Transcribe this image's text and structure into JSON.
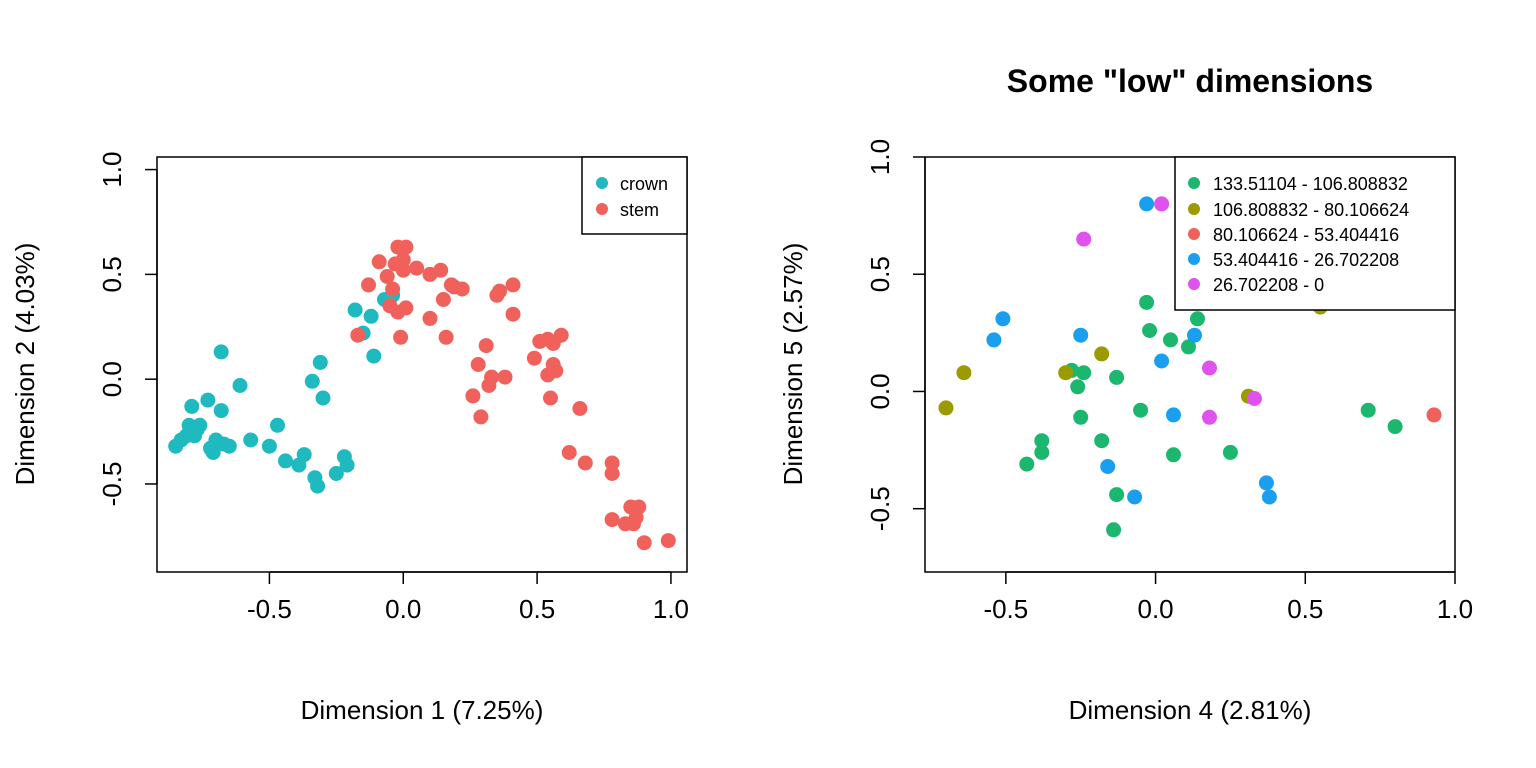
{
  "chart_data": [
    {
      "type": "scatter",
      "title": "",
      "xlabel": "Dimension 1 (7.25%)",
      "ylabel": "Dimension 2 (4.03%)",
      "xlim": [
        -0.92,
        1.06
      ],
      "ylim": [
        -0.92,
        1.06
      ],
      "xticks": [
        -0.5,
        0.0,
        0.5,
        1.0
      ],
      "yticks": [
        -0.5,
        0.0,
        0.5,
        1.0
      ],
      "xtick_labels": [
        "-0.5",
        "0.0",
        "0.5",
        "1.0"
      ],
      "ytick_labels": [
        "-0.5",
        "0.0",
        "0.5",
        "1.0"
      ],
      "grid": false,
      "legend_position": "top-right",
      "series": [
        {
          "name": "crown",
          "color": "#1fbabf",
          "points": [
            [
              -0.85,
              -0.32
            ],
            [
              -0.83,
              -0.29
            ],
            [
              -0.81,
              -0.27
            ],
            [
              -0.8,
              -0.22
            ],
            [
              -0.79,
              -0.13
            ],
            [
              -0.78,
              -0.27
            ],
            [
              -0.77,
              -0.24
            ],
            [
              -0.76,
              -0.22
            ],
            [
              -0.73,
              -0.1
            ],
            [
              -0.72,
              -0.33
            ],
            [
              -0.71,
              -0.35
            ],
            [
              -0.7,
              -0.29
            ],
            [
              -0.68,
              -0.15
            ],
            [
              -0.68,
              0.13
            ],
            [
              -0.67,
              -0.31
            ],
            [
              -0.65,
              -0.32
            ],
            [
              -0.61,
              -0.03
            ],
            [
              -0.57,
              -0.29
            ],
            [
              -0.5,
              -0.32
            ],
            [
              -0.47,
              -0.22
            ],
            [
              -0.44,
              -0.39
            ],
            [
              -0.39,
              -0.41
            ],
            [
              -0.37,
              -0.36
            ],
            [
              -0.34,
              -0.01
            ],
            [
              -0.33,
              -0.47
            ],
            [
              -0.32,
              -0.51
            ],
            [
              -0.31,
              0.08
            ],
            [
              -0.3,
              -0.09
            ],
            [
              -0.25,
              -0.45
            ],
            [
              -0.22,
              -0.37
            ],
            [
              -0.21,
              -0.41
            ],
            [
              -0.18,
              0.33
            ],
            [
              -0.15,
              0.22
            ],
            [
              -0.12,
              0.3
            ],
            [
              -0.11,
              0.11
            ],
            [
              -0.07,
              0.38
            ],
            [
              -0.04,
              0.4
            ]
          ]
        },
        {
          "name": "stem",
          "color": "#f1615c",
          "points": [
            [
              -0.17,
              0.21
            ],
            [
              -0.13,
              0.45
            ],
            [
              -0.09,
              0.56
            ],
            [
              -0.06,
              0.49
            ],
            [
              -0.05,
              0.35
            ],
            [
              -0.04,
              0.43
            ],
            [
              -0.03,
              0.55
            ],
            [
              -0.02,
              0.32
            ],
            [
              -0.02,
              0.63
            ],
            [
              -0.01,
              0.2
            ],
            [
              0.0,
              0.52
            ],
            [
              0.0,
              0.57
            ],
            [
              0.01,
              0.63
            ],
            [
              0.01,
              0.34
            ],
            [
              0.05,
              0.53
            ],
            [
              0.1,
              0.5
            ],
            [
              0.1,
              0.29
            ],
            [
              0.14,
              0.52
            ],
            [
              0.15,
              0.38
            ],
            [
              0.16,
              0.2
            ],
            [
              0.18,
              0.45
            ],
            [
              0.19,
              0.44
            ],
            [
              0.22,
              0.43
            ],
            [
              0.26,
              -0.08
            ],
            [
              0.28,
              0.07
            ],
            [
              0.29,
              -0.18
            ],
            [
              0.31,
              0.16
            ],
            [
              0.32,
              -0.03
            ],
            [
              0.33,
              0.01
            ],
            [
              0.35,
              0.4
            ],
            [
              0.36,
              0.42
            ],
            [
              0.38,
              0.01
            ],
            [
              0.41,
              0.45
            ],
            [
              0.41,
              0.31
            ],
            [
              0.49,
              0.1
            ],
            [
              0.51,
              0.18
            ],
            [
              0.54,
              0.19
            ],
            [
              0.54,
              0.02
            ],
            [
              0.55,
              -0.09
            ],
            [
              0.56,
              0.17
            ],
            [
              0.56,
              0.07
            ],
            [
              0.57,
              0.04
            ],
            [
              0.59,
              0.21
            ],
            [
              0.62,
              -0.35
            ],
            [
              0.66,
              -0.14
            ],
            [
              0.68,
              -0.4
            ],
            [
              0.78,
              -0.4
            ],
            [
              0.78,
              -0.45
            ],
            [
              0.78,
              -0.67
            ],
            [
              0.83,
              -0.69
            ],
            [
              0.85,
              -0.61
            ],
            [
              0.86,
              -0.69
            ],
            [
              0.87,
              -0.66
            ],
            [
              0.88,
              -0.61
            ],
            [
              0.9,
              -0.78
            ],
            [
              0.99,
              -0.77
            ]
          ]
        }
      ]
    },
    {
      "type": "scatter",
      "title": "Some \"low\" dimensions",
      "xlabel": "Dimension 4 (2.81%)",
      "ylabel": "Dimension 5 (2.57%)",
      "xlim": [
        -0.77,
        1.0
      ],
      "ylim": [
        -0.77,
        1.0
      ],
      "xticks": [
        -0.5,
        0.0,
        0.5,
        1.0
      ],
      "yticks": [
        -0.5,
        0.0,
        0.5,
        1.0
      ],
      "xtick_labels": [
        "-0.5",
        "0.0",
        "0.5",
        "1.0"
      ],
      "ytick_labels": [
        "-0.5",
        "0.0",
        "0.5",
        "1.0"
      ],
      "grid": false,
      "legend_position": "top-right",
      "series": [
        {
          "name": "133.51104 - 106.808832",
          "color": "#1bb76e",
          "points": [
            [
              -0.43,
              -0.31
            ],
            [
              -0.38,
              -0.21
            ],
            [
              -0.38,
              -0.26
            ],
            [
              -0.28,
              0.09
            ],
            [
              -0.26,
              0.02
            ],
            [
              -0.25,
              -0.11
            ],
            [
              -0.24,
              0.08
            ],
            [
              -0.18,
              -0.21
            ],
            [
              -0.14,
              -0.59
            ],
            [
              -0.13,
              -0.44
            ],
            [
              -0.13,
              0.06
            ],
            [
              -0.05,
              -0.08
            ],
            [
              -0.03,
              0.38
            ],
            [
              -0.02,
              0.26
            ],
            [
              0.05,
              0.22
            ],
            [
              0.06,
              -0.27
            ],
            [
              0.11,
              0.19
            ],
            [
              0.14,
              0.31
            ],
            [
              0.25,
              -0.26
            ],
            [
              0.71,
              -0.08
            ],
            [
              0.8,
              -0.15
            ]
          ]
        },
        {
          "name": "106.808832 - 80.106624",
          "color": "#9b9a00",
          "points": [
            [
              -0.7,
              -0.07
            ],
            [
              -0.64,
              0.08
            ],
            [
              -0.3,
              0.08
            ],
            [
              -0.18,
              0.16
            ],
            [
              0.31,
              -0.02
            ],
            [
              0.55,
              0.36
            ]
          ]
        },
        {
          "name": "80.106624 - 53.404416",
          "color": "#f1615c",
          "points": [
            [
              0.93,
              -0.1
            ]
          ]
        },
        {
          "name": "53.404416 - 26.702208",
          "color": "#1a9ef0",
          "points": [
            [
              -0.54,
              0.22
            ],
            [
              -0.51,
              0.31
            ],
            [
              -0.25,
              0.24
            ],
            [
              -0.16,
              -0.32
            ],
            [
              -0.07,
              -0.45
            ],
            [
              -0.03,
              0.8
            ],
            [
              0.02,
              0.13
            ],
            [
              0.06,
              -0.1
            ],
            [
              0.13,
              0.24
            ],
            [
              0.37,
              -0.39
            ],
            [
              0.38,
              -0.45
            ]
          ]
        },
        {
          "name": "26.702208 - 0",
          "color": "#e052ee",
          "points": [
            [
              -0.24,
              0.65
            ],
            [
              0.02,
              0.8
            ],
            [
              0.18,
              0.1
            ],
            [
              0.18,
              -0.11
            ],
            [
              0.33,
              -0.03
            ]
          ]
        }
      ]
    }
  ]
}
